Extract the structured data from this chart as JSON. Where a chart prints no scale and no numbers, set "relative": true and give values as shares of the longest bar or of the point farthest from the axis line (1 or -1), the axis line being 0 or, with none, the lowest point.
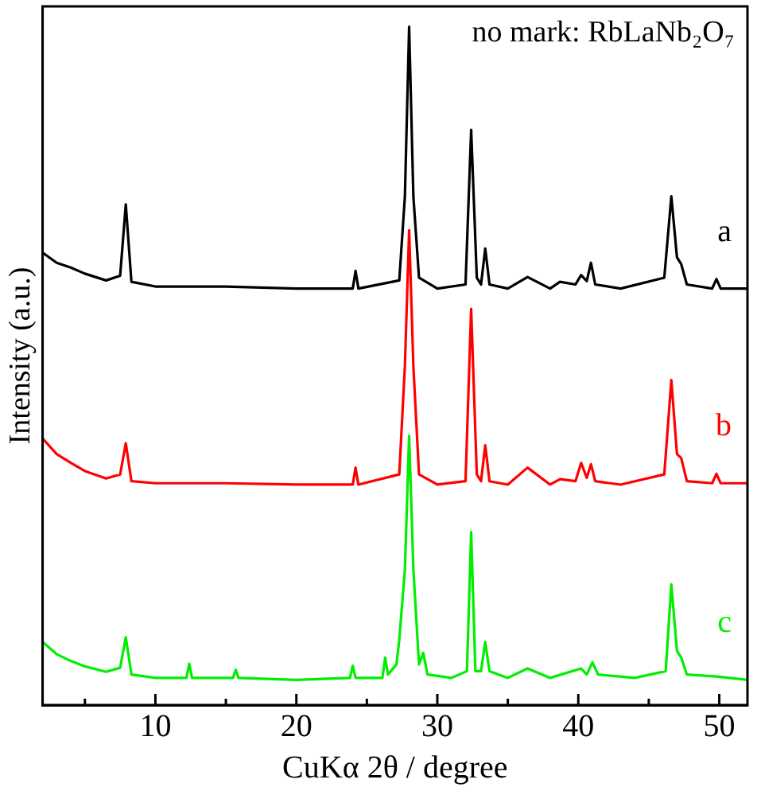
{
  "chart_data": {
    "type": "line",
    "relative": true,
    "xlabel": "CuKα 2θ / degree",
    "ylabel": "Intensity (a.u.)",
    "annotations": [
      "no mark: RbLaNb₂O₇"
    ],
    "xlim": [
      2,
      52
    ],
    "xticks": [
      {
        "value": 5,
        "label": null
      },
      10,
      {
        "value": 15,
        "label": null
      },
      20,
      {
        "value": 25,
        "label": null
      },
      30,
      {
        "value": 35,
        "label": null
      },
      40,
      {
        "value": 45,
        "label": null
      },
      50
    ],
    "grid": false,
    "legend": false,
    "marker": "none",
    "line_style": "solid",
    "series": [
      {
        "name": "a",
        "color": "#000000",
        "x": [
          2,
          3,
          4,
          5,
          6.5,
          7.5,
          7.9,
          8.3,
          10,
          15,
          20,
          24,
          24.2,
          24.4,
          27.3,
          27.7,
          28,
          28.3,
          28.7,
          30,
          32,
          32.4,
          32.8,
          33.1,
          33.4,
          33.7,
          35,
          36.4,
          38,
          38.7,
          39.8,
          40.2,
          40.6,
          40.9,
          41.2,
          43,
          46.1,
          46.6,
          47,
          47.3,
          47.7,
          49.5,
          49.8,
          50.1,
          52
        ],
        "values": [
          0.667,
          0.652,
          0.645,
          0.636,
          0.626,
          0.633,
          0.738,
          0.624,
          0.617,
          0.617,
          0.614,
          0.614,
          0.64,
          0.614,
          0.626,
          0.75,
          1.0,
          0.75,
          0.63,
          0.614,
          0.62,
          0.848,
          0.63,
          0.62,
          0.673,
          0.62,
          0.614,
          0.631,
          0.614,
          0.624,
          0.62,
          0.634,
          0.625,
          0.652,
          0.62,
          0.614,
          0.63,
          0.75,
          0.66,
          0.65,
          0.62,
          0.614,
          0.628,
          0.614,
          0.614
        ]
      },
      {
        "name": "b",
        "color": "#ff0000",
        "x": [
          2,
          3,
          4,
          5,
          6.5,
          7.5,
          7.9,
          8.3,
          10,
          15,
          20,
          24,
          24.2,
          24.4,
          27.3,
          27.7,
          28,
          28.3,
          28.7,
          30,
          32,
          32.4,
          32.8,
          33.1,
          33.4,
          33.7,
          35,
          36.4,
          38,
          38.7,
          39.8,
          40.2,
          40.6,
          40.9,
          41.2,
          43,
          46.1,
          46.6,
          47,
          47.3,
          47.7,
          49.5,
          49.8,
          50.1,
          52
        ],
        "values": [
          0.393,
          0.37,
          0.357,
          0.345,
          0.334,
          0.34,
          0.386,
          0.33,
          0.327,
          0.327,
          0.325,
          0.325,
          0.35,
          0.325,
          0.34,
          0.5,
          0.7,
          0.5,
          0.34,
          0.325,
          0.33,
          0.584,
          0.34,
          0.33,
          0.383,
          0.33,
          0.325,
          0.35,
          0.325,
          0.333,
          0.33,
          0.357,
          0.335,
          0.355,
          0.33,
          0.325,
          0.34,
          0.479,
          0.37,
          0.364,
          0.33,
          0.327,
          0.341,
          0.327,
          0.327
        ]
      },
      {
        "name": "c",
        "color": "#00ee00",
        "x": [
          2,
          3,
          4,
          5,
          6.5,
          7.5,
          7.9,
          8.3,
          10,
          12.2,
          12.4,
          12.6,
          15.5,
          15.7,
          15.9,
          20,
          23.8,
          24,
          24.2,
          26.1,
          26.3,
          26.5,
          27.1,
          27.3,
          27.7,
          28,
          28.3,
          28.7,
          29,
          29.3,
          31,
          32.1,
          32.4,
          32.7,
          33.1,
          33.4,
          33.7,
          35,
          36.4,
          38,
          40.2,
          40.6,
          41,
          41.4,
          44,
          46.2,
          46.6,
          47,
          47.3,
          47.7,
          49.8,
          52
        ],
        "values": [
          0.093,
          0.075,
          0.065,
          0.057,
          0.049,
          0.055,
          0.1,
          0.045,
          0.04,
          0.04,
          0.061,
          0.04,
          0.04,
          0.052,
          0.04,
          0.037,
          0.04,
          0.058,
          0.04,
          0.04,
          0.07,
          0.045,
          0.06,
          0.096,
          0.2,
          0.397,
          0.2,
          0.06,
          0.077,
          0.045,
          0.04,
          0.05,
          0.255,
          0.05,
          0.05,
          0.093,
          0.05,
          0.04,
          0.054,
          0.04,
          0.054,
          0.045,
          0.063,
          0.045,
          0.04,
          0.05,
          0.178,
          0.08,
          0.07,
          0.045,
          0.042,
          0.037
        ]
      }
    ]
  }
}
